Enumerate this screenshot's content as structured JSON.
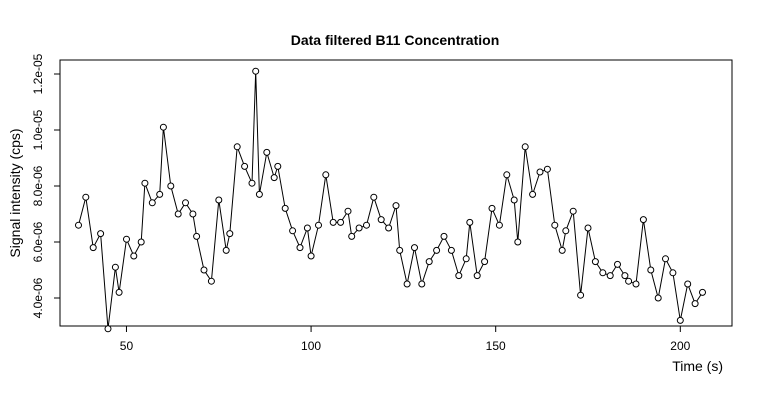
{
  "chart_data": {
    "type": "line",
    "title": "Data filtered B11 Concentration",
    "xlabel": "Time (s)",
    "ylabel": "Signal intensity (cps)",
    "xlim": [
      32,
      214
    ],
    "ylim": [
      3e-06,
      1.25e-05
    ],
    "grid": false,
    "x_ticks": [
      {
        "value": 50,
        "label": "50"
      },
      {
        "value": 100,
        "label": "100"
      },
      {
        "value": 150,
        "label": "150"
      },
      {
        "value": 200,
        "label": "200"
      }
    ],
    "y_ticks": [
      {
        "value": 4e-06,
        "label": "4.0e-06"
      },
      {
        "value": 6e-06,
        "label": "6.0e-06"
      },
      {
        "value": 8e-06,
        "label": "8.0e-06"
      },
      {
        "value": 1e-05,
        "label": "1.0e-05"
      },
      {
        "value": 1.2e-05,
        "label": "1.2e-05"
      }
    ],
    "x": [
      37,
      39,
      41,
      43,
      45,
      47,
      48,
      50,
      52,
      54,
      55,
      57,
      59,
      60,
      62,
      64,
      66,
      68,
      69,
      71,
      73,
      75,
      77,
      78,
      80,
      82,
      84,
      85,
      86,
      88,
      90,
      91,
      93,
      95,
      97,
      99,
      100,
      102,
      104,
      106,
      108,
      110,
      111,
      113,
      115,
      117,
      119,
      121,
      123,
      124,
      126,
      128,
      130,
      132,
      134,
      136,
      138,
      140,
      142,
      143,
      145,
      147,
      149,
      151,
      153,
      155,
      156,
      158,
      160,
      162,
      164,
      166,
      168,
      169,
      171,
      173,
      175,
      177,
      179,
      181,
      183,
      185,
      186,
      188,
      190,
      192,
      194,
      196,
      198,
      200,
      202,
      204,
      206
    ],
    "y": [
      6.6e-06,
      7.6e-06,
      5.8e-06,
      6.3e-06,
      2.9e-06,
      5.1e-06,
      4.2e-06,
      6.1e-06,
      5.5e-06,
      6e-06,
      8.1e-06,
      7.4e-06,
      7.7e-06,
      1.01e-05,
      8e-06,
      7e-06,
      7.4e-06,
      7e-06,
      6.2e-06,
      5e-06,
      4.6e-06,
      7.5e-06,
      5.7e-06,
      6.3e-06,
      9.4e-06,
      8.7e-06,
      8.1e-06,
      1.21e-05,
      7.7e-06,
      9.2e-06,
      8.3e-06,
      8.7e-06,
      7.2e-06,
      6.4e-06,
      5.8e-06,
      6.5e-06,
      5.5e-06,
      6.6e-06,
      8.4e-06,
      6.7e-06,
      6.7e-06,
      7.1e-06,
      6.2e-06,
      6.5e-06,
      6.6e-06,
      7.6e-06,
      6.8e-06,
      6.5e-06,
      7.3e-06,
      5.7e-06,
      4.5e-06,
      5.8e-06,
      4.5e-06,
      5.3e-06,
      5.7e-06,
      6.2e-06,
      5.7e-06,
      4.8e-06,
      5.4e-06,
      6.7e-06,
      4.8e-06,
      5.3e-06,
      7.2e-06,
      6.6e-06,
      8.4e-06,
      7.5e-06,
      6e-06,
      9.4e-06,
      7.7e-06,
      8.5e-06,
      8.6e-06,
      6.6e-06,
      5.7e-06,
      6.4e-06,
      7.1e-06,
      4.1e-06,
      6.5e-06,
      5.3e-06,
      4.9e-06,
      4.8e-06,
      5.2e-06,
      4.8e-06,
      4.6e-06,
      4.5e-06,
      6.8e-06,
      5e-06,
      4e-06,
      5.4e-06,
      4.9e-06,
      3.2e-06,
      4.5e-06,
      3.8e-06,
      4.2e-06
    ]
  }
}
